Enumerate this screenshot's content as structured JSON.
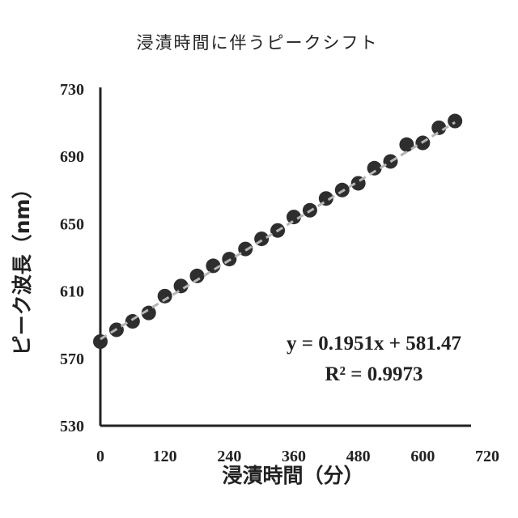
{
  "chart_data": {
    "type": "scatter",
    "title": "浸漬時間に伴うピークシフト",
    "xlabel": "浸漬時間（分）",
    "ylabel": "ピーク波長（nm）",
    "xlim": [
      0,
      720
    ],
    "ylim": [
      530,
      730
    ],
    "x_ticks": [
      "0",
      "120",
      "240",
      "360",
      "480",
      "600",
      "720"
    ],
    "y_ticks": [
      "730",
      "690",
      "650",
      "610",
      "570",
      "530"
    ],
    "grid": false,
    "legend": "none",
    "points": {
      "x": [
        0,
        30,
        60,
        90,
        120,
        150,
        180,
        210,
        240,
        270,
        300,
        330,
        360,
        390,
        420,
        450,
        480,
        510,
        540,
        570,
        600,
        630,
        660
      ],
      "y": [
        580,
        587,
        592,
        597,
        607,
        613,
        619,
        625,
        629,
        635,
        641,
        646,
        654,
        658,
        665,
        670,
        674,
        683,
        687,
        697,
        698,
        707,
        711
      ]
    },
    "trendline": {
      "slope": 0.1951,
      "intercept": 581.47,
      "style": "dashed",
      "color": "#b5b5b5"
    },
    "annotations": {
      "equation": "y = 0.1951x + 581.47",
      "r_squared": "R² = 0.9973"
    },
    "colors": {
      "marker": "#2e2e2e",
      "axis": "#222222",
      "trendline": "#b5b5b5"
    }
  }
}
